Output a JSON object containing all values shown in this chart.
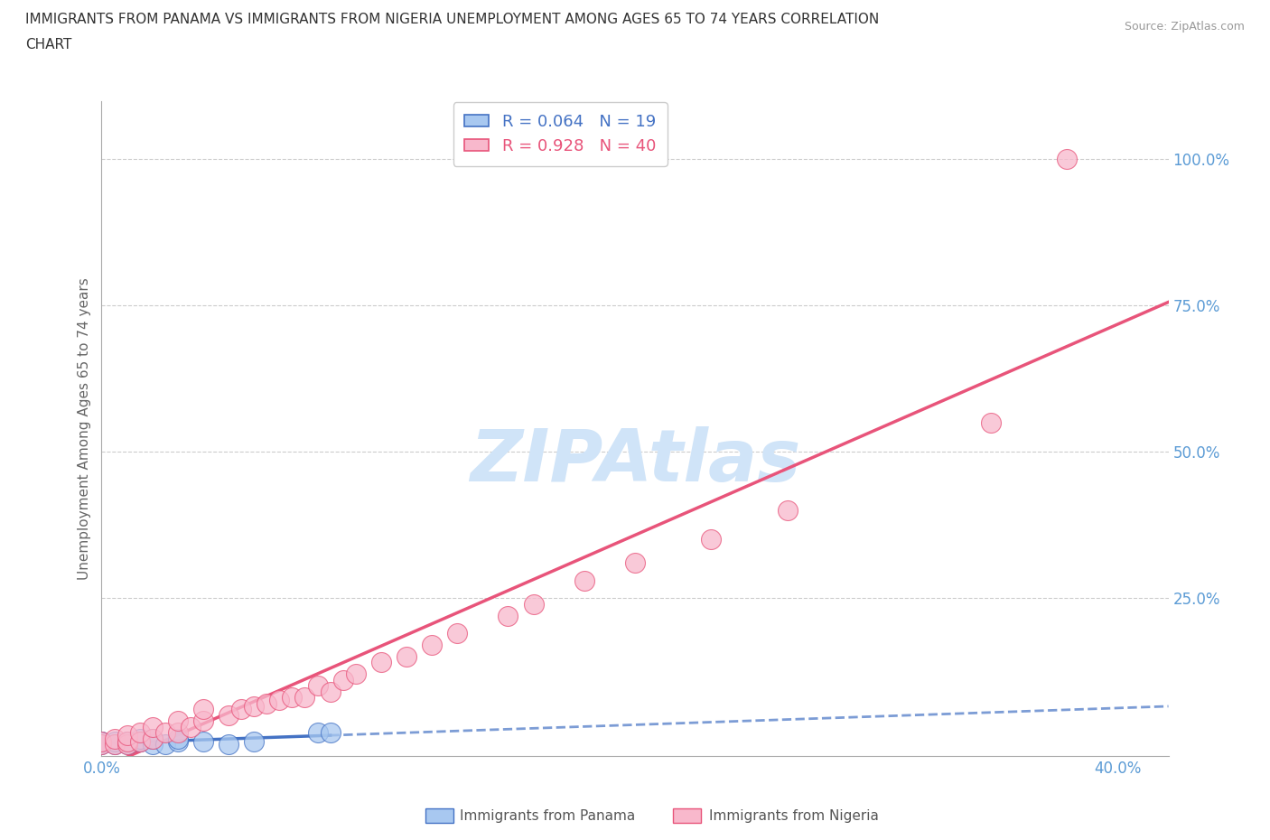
{
  "title_line1": "IMMIGRANTS FROM PANAMA VS IMMIGRANTS FROM NIGERIA UNEMPLOYMENT AMONG AGES 65 TO 74 YEARS CORRELATION",
  "title_line2": "CHART",
  "source_text": "Source: ZipAtlas.com",
  "ylabel": "Unemployment Among Ages 65 to 74 years",
  "legend_panama": "Immigrants from Panama",
  "legend_nigeria": "Immigrants from Nigeria",
  "r_panama": 0.064,
  "n_panama": 19,
  "r_nigeria": 0.928,
  "n_nigeria": 40,
  "xlim": [
    0.0,
    0.42
  ],
  "ylim": [
    -0.02,
    1.1
  ],
  "y_ticks": [
    0.0,
    0.25,
    0.5,
    0.75,
    1.0
  ],
  "y_tick_labels": [
    "",
    "25.0%",
    "50.0%",
    "75.0%",
    "100.0%"
  ],
  "color_panama": "#A8C8F0",
  "color_nigeria": "#F8B8CC",
  "line_color_panama": "#4472C4",
  "line_color_nigeria": "#E8547A",
  "watermark_text": "ZIPAtlas",
  "watermark_color": "#D0E4F8",
  "panama_x": [
    0.0,
    0.0,
    0.0,
    0.005,
    0.005,
    0.01,
    0.01,
    0.015,
    0.015,
    0.02,
    0.02,
    0.025,
    0.03,
    0.03,
    0.04,
    0.05,
    0.06,
    0.085,
    0.09
  ],
  "panama_y": [
    0.0,
    0.005,
    0.005,
    0.0,
    0.005,
    0.0,
    0.005,
    0.005,
    0.01,
    0.0,
    0.01,
    0.0,
    0.005,
    0.01,
    0.005,
    0.0,
    0.005,
    0.02,
    0.02
  ],
  "nigeria_x": [
    0.0,
    0.0,
    0.005,
    0.005,
    0.01,
    0.01,
    0.01,
    0.015,
    0.015,
    0.02,
    0.02,
    0.025,
    0.03,
    0.03,
    0.035,
    0.04,
    0.04,
    0.05,
    0.055,
    0.06,
    0.065,
    0.07,
    0.075,
    0.08,
    0.085,
    0.09,
    0.095,
    0.1,
    0.11,
    0.12,
    0.13,
    0.14,
    0.16,
    0.17,
    0.19,
    0.21,
    0.24,
    0.27,
    0.35,
    0.38
  ],
  "nigeria_y": [
    0.0,
    0.005,
    0.0,
    0.01,
    0.0,
    0.005,
    0.015,
    0.005,
    0.02,
    0.01,
    0.03,
    0.02,
    0.02,
    0.04,
    0.03,
    0.04,
    0.06,
    0.05,
    0.06,
    0.065,
    0.07,
    0.075,
    0.08,
    0.08,
    0.1,
    0.09,
    0.11,
    0.12,
    0.14,
    0.15,
    0.17,
    0.19,
    0.22,
    0.24,
    0.28,
    0.31,
    0.35,
    0.4,
    0.55,
    1.0
  ]
}
